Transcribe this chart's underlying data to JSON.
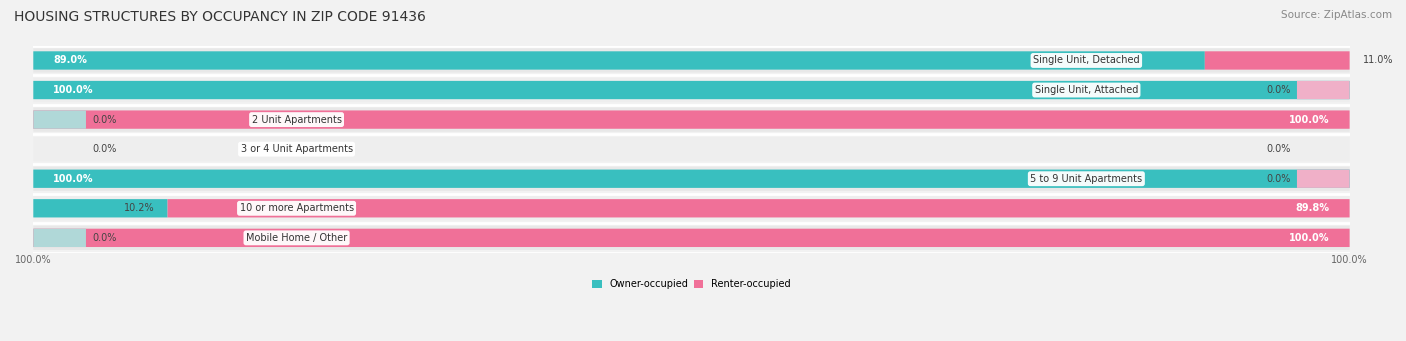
{
  "title": "HOUSING STRUCTURES BY OCCUPANCY IN ZIP CODE 91436",
  "source": "Source: ZipAtlas.com",
  "categories": [
    "Single Unit, Detached",
    "Single Unit, Attached",
    "2 Unit Apartments",
    "3 or 4 Unit Apartments",
    "5 to 9 Unit Apartments",
    "10 or more Apartments",
    "Mobile Home / Other"
  ],
  "owner_pct": [
    89.0,
    100.0,
    0.0,
    0.0,
    100.0,
    10.2,
    0.0
  ],
  "renter_pct": [
    11.0,
    0.0,
    100.0,
    0.0,
    0.0,
    89.8,
    100.0
  ],
  "owner_color": "#39bfbf",
  "renter_color": "#f07098",
  "owner_color_light": "#b0d8d8",
  "renter_color_light": "#f0b0c8",
  "bg_color": "#f2f2f2",
  "row_bg_color": "#e8e8e8",
  "row_alt_bg_color": "#f2f2f2",
  "white_color": "#ffffff",
  "title_fontsize": 10,
  "source_fontsize": 7.5,
  "label_fontsize": 7,
  "bar_label_fontsize": 7,
  "axis_label_fontsize": 7,
  "bar_height": 0.62,
  "figsize": [
    14.06,
    3.41
  ]
}
